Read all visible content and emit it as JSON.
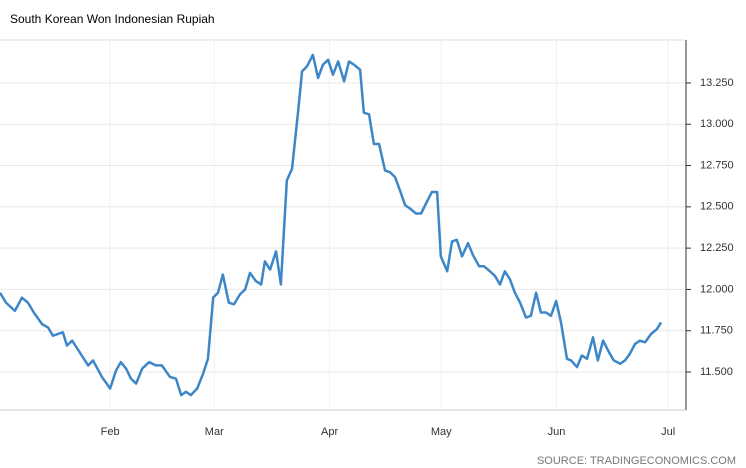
{
  "chart_data": {
    "type": "line",
    "title": "South Korean Won Indonesian Rupiah",
    "source": "SOURCE: TRADINGECONOMICS.COM",
    "x": [
      2.4,
      4.0,
      6.4,
      8.3,
      9.9,
      11.5,
      13.7,
      15.3,
      16.6,
      19.3,
      20.4,
      21.8,
      26.1,
      27.4,
      29.8,
      32.0,
      33.6,
      34.9,
      36.3,
      37.6,
      39.0,
      40.6,
      42.5,
      44.3,
      45.9,
      48.1,
      49.7,
      51.1,
      52.4,
      53.7,
      55.4,
      57.0,
      58.3,
      59.7,
      61.0,
      62.3,
      63.9,
      65.3,
      66.9,
      68.3,
      69.6,
      71.2,
      72.6,
      73.6,
      75.0,
      76.6,
      77.9,
      79.5,
      80.9,
      82.5,
      83.6,
      84.9,
      86.5,
      87.9,
      89.2,
      90.6,
      91.9,
      93.3,
      94.9,
      96.2,
      97.6,
      99.2,
      100.2,
      101.6,
      102.9,
      104.3,
      105.9,
      107.2,
      108.6,
      109.9,
      111.3,
      112.6,
      114.2,
      115.6,
      116.9,
      118.5,
      119.9,
      120.9,
      122.6,
      123.9,
      125.2,
      126.6,
      128.2,
      129.5,
      131.2,
      132.5,
      134.1,
      135.5,
      136.8,
      138.1,
      139.5,
      140.8,
      142.2,
      143.8,
      145.1,
      146.5,
      147.8,
      149.2,
      150.5,
      151.9,
      153.2,
      154.8,
      155.9,
      157.5,
      158.8,
      160.2,
      161.8,
      163.1,
      164.5,
      166.1,
      167.4,
      169.1,
      170.4,
      171.7,
      173.1,
      174.4,
      175.8,
      177.4,
      179.0,
      180.1
    ],
    "series": [
      {
        "name": "South Korean Won Indonesian Rupiah",
        "color": "#3d87c8",
        "values": [
          11.98,
          11.92,
          11.87,
          11.95,
          11.92,
          11.86,
          11.79,
          11.77,
          11.72,
          11.74,
          11.66,
          11.69,
          11.54,
          11.57,
          11.47,
          11.4,
          11.51,
          11.56,
          11.52,
          11.46,
          11.43,
          11.52,
          11.56,
          11.54,
          11.54,
          11.47,
          11.46,
          11.36,
          11.38,
          11.36,
          11.4,
          11.49,
          11.58,
          11.95,
          11.98,
          12.09,
          11.92,
          11.91,
          11.97,
          12.0,
          12.1,
          12.05,
          12.03,
          12.17,
          12.12,
          12.23,
          12.03,
          12.66,
          12.73,
          13.07,
          13.32,
          13.35,
          13.42,
          13.28,
          13.36,
          13.39,
          13.3,
          13.38,
          13.26,
          13.38,
          13.36,
          13.33,
          13.07,
          13.06,
          12.88,
          12.88,
          12.72,
          12.71,
          12.68,
          12.6,
          12.51,
          12.49,
          12.46,
          12.46,
          12.52,
          12.59,
          12.59,
          12.2,
          12.11,
          12.29,
          12.3,
          12.2,
          12.28,
          12.21,
          12.14,
          12.14,
          12.11,
          12.08,
          12.03,
          12.11,
          12.06,
          11.98,
          11.92,
          11.83,
          11.84,
          11.98,
          11.86,
          11.86,
          11.84,
          11.93,
          11.8,
          11.58,
          11.57,
          11.53,
          11.6,
          11.58,
          11.71,
          11.57,
          11.69,
          11.62,
          11.57,
          11.55,
          11.57,
          11.61,
          11.67,
          11.69,
          11.68,
          11.73,
          11.76,
          11.8
        ]
      }
    ],
    "xlim": [
      2.4,
      186.8
    ],
    "xticks": [
      {
        "value": 32,
        "label": "Feb"
      },
      {
        "value": 60,
        "label": "Mar"
      },
      {
        "value": 91,
        "label": "Apr"
      },
      {
        "value": 121,
        "label": "May"
      },
      {
        "value": 152,
        "label": "Jun"
      },
      {
        "value": 182,
        "label": "Jul"
      }
    ],
    "ylim": [
      11.27,
      13.51
    ],
    "yticks": [
      {
        "value": 11.5,
        "label": "11.500"
      },
      {
        "value": 11.75,
        "label": "11.750"
      },
      {
        "value": 12.0,
        "label": "12.000"
      },
      {
        "value": 12.25,
        "label": "12.250"
      },
      {
        "value": 12.5,
        "label": "12.500"
      },
      {
        "value": 12.75,
        "label": "12.750"
      },
      {
        "value": 13.0,
        "label": "13.000"
      },
      {
        "value": 13.25,
        "label": "13.250"
      }
    ],
    "grid": true
  }
}
